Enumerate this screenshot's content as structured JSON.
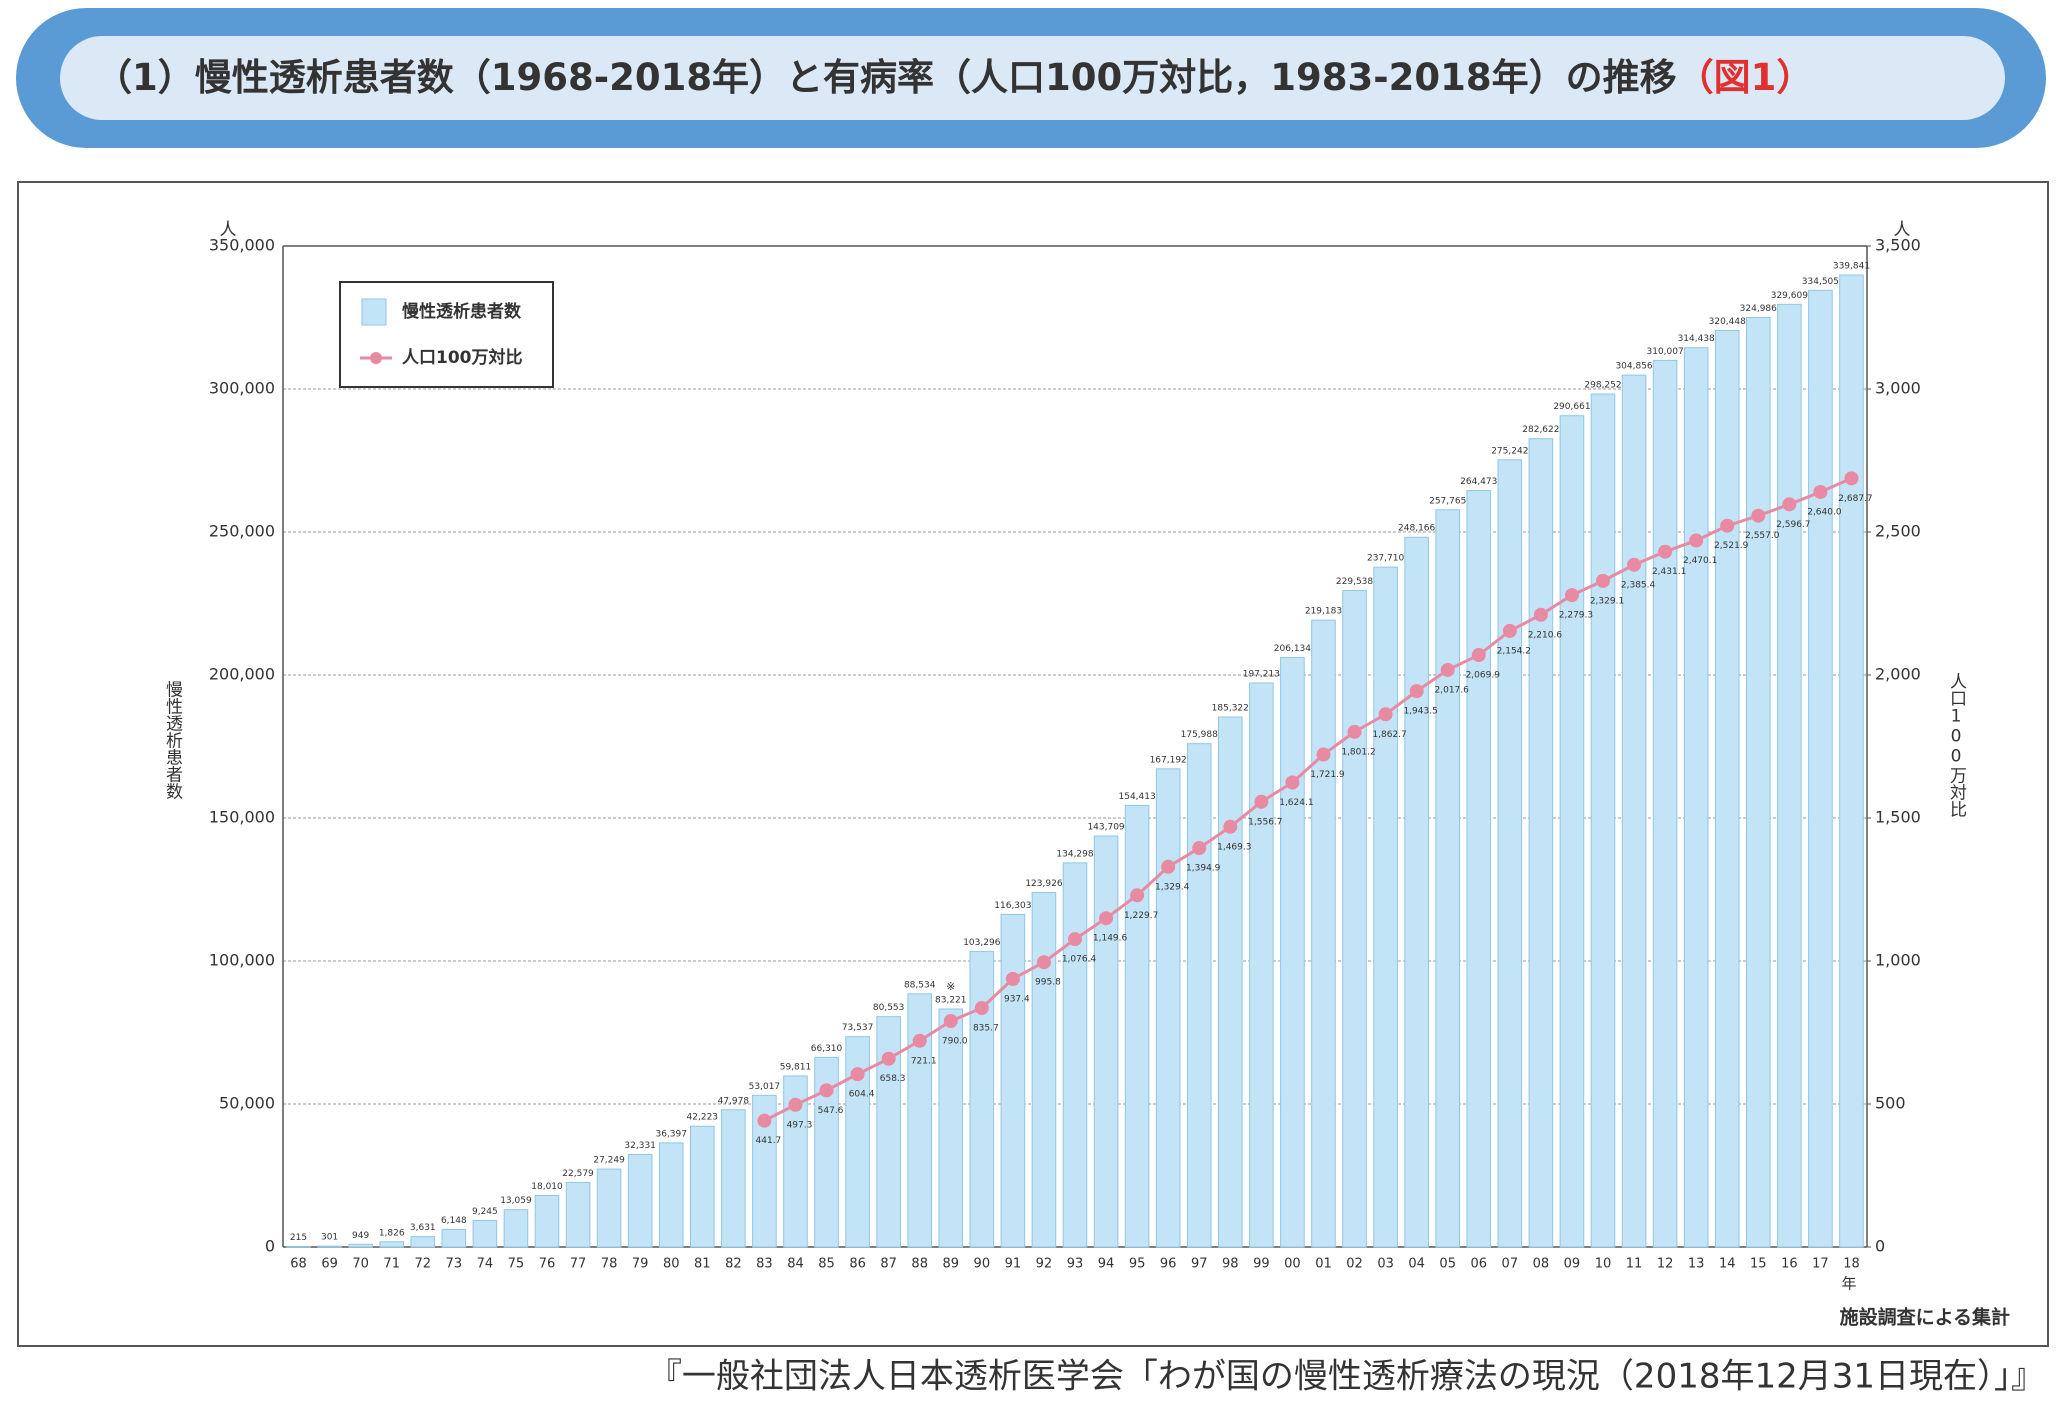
{
  "chart_data": {
    "type": "bar_line",
    "title": "（1）慢性透析患者数（1968-2018年）と有病率（人口100万対比，1983-2018年）の推移",
    "title_ref": "（図1）",
    "y_label": "慢性透析患者数",
    "y2_label": "人口100万対比",
    "y_unit": "人",
    "y2_unit": "人",
    "x_unit": "年",
    "note": "施設調査による集計",
    "annotation": "※",
    "source": "『一般社団法人日本透析医学会「わが国の慢性透析療法の現況（2018年12月31日現在）」』",
    "categories": [
      "68",
      "69",
      "70",
      "71",
      "72",
      "73",
      "74",
      "75",
      "76",
      "77",
      "78",
      "79",
      "80",
      "81",
      "82",
      "83",
      "84",
      "85",
      "86",
      "87",
      "88",
      "89",
      "90",
      "91",
      "92",
      "93",
      "94",
      "95",
      "96",
      "97",
      "98",
      "99",
      "00",
      "01",
      "02",
      "03",
      "04",
      "05",
      "06",
      "07",
      "08",
      "09",
      "10",
      "11",
      "12",
      "13",
      "14",
      "15",
      "16",
      "17",
      "18"
    ],
    "series": [
      {
        "name": "慢性透析患者数",
        "color": "#c3e4f6",
        "values": [
          215,
          301,
          949,
          1826,
          3631,
          6148,
          9245,
          13059,
          18010,
          22579,
          27249,
          32331,
          36397,
          42223,
          47978,
          53017,
          59811,
          66310,
          73537,
          80553,
          88534,
          83221,
          103296,
          116303,
          123926,
          134298,
          143709,
          154413,
          167192,
          175988,
          185322,
          197213,
          206134,
          219183,
          229538,
          237710,
          248166,
          257765,
          264473,
          275242,
          282622,
          290661,
          298252,
          304856,
          310007,
          314438,
          320448,
          324986,
          329609,
          334505,
          339841
        ],
        "value_labels": [
          "215",
          "301",
          "949",
          "1,826",
          "3,631",
          "6,148",
          "9,245",
          "13,059",
          "18,010",
          "22,579",
          "27,249",
          "32,331",
          "36,397",
          "42,223",
          "47,978",
          "53,017",
          "59,811",
          "66,310",
          "73,537",
          "80,553",
          "88,534",
          "83,221",
          "103,296",
          "116,303",
          "123,926",
          "134,298",
          "143,709",
          "154,413",
          "167,192",
          "175,988",
          "185,322",
          "197,213",
          "206,134",
          "219,183",
          "229,538",
          "237,710",
          "248,166",
          "257,765",
          "264,473",
          "275,242",
          "282,622",
          "290,661",
          "298,252",
          "304,856",
          "310,007",
          "314,438",
          "320,448",
          "324,986",
          "329,609",
          "334,505",
          "339,841"
        ]
      },
      {
        "name": "人口100万対比",
        "color": "#e88aa2",
        "axis": "y2",
        "values": [
          null,
          null,
          null,
          null,
          null,
          null,
          null,
          null,
          null,
          null,
          null,
          null,
          null,
          null,
          null,
          441.7,
          497.3,
          547.6,
          604.4,
          658.3,
          721.1,
          790.0,
          835.7,
          937.4,
          995.8,
          1076.4,
          1149.6,
          1229.7,
          1329.4,
          1394.9,
          1469.3,
          1556.7,
          1624.1,
          1721.9,
          1801.2,
          1862.7,
          1943.5,
          2017.6,
          2069.9,
          2154.2,
          2210.6,
          2279.3,
          2329.1,
          2385.4,
          2431.1,
          2470.1,
          2521.9,
          2557.0,
          2596.7,
          2640.0,
          2687.7
        ],
        "value_labels": [
          null,
          null,
          null,
          null,
          null,
          null,
          null,
          null,
          null,
          null,
          null,
          null,
          null,
          null,
          null,
          "441.7",
          "497.3",
          "547.6",
          "604.4",
          "658.3",
          "721.1",
          "790.0",
          "835.7",
          "937.4",
          "995.8",
          "1,076.4",
          "1,149.6",
          "1,229.7",
          "1,329.4",
          "1,394.9",
          "1,469.3",
          "1,556.7",
          "1,624.1",
          "1,721.9",
          "1,801.2",
          "1,862.7",
          "1,943.5",
          "2,017.6",
          "2,069.9",
          "2,154.2",
          "2,210.6",
          "2,279.3",
          "2,329.1",
          "2,385.4",
          "2,431.1",
          "2,470.1",
          "2,521.9",
          "2,557.0",
          "2,596.7",
          "2,640.0",
          "2,687.7"
        ]
      }
    ],
    "ylim": [
      0,
      350000
    ],
    "yticks": [
      0,
      {
        "value": 50000,
        "label": "50,000"
      },
      {
        "value": 100000,
        "label": "100,000"
      },
      {
        "value": 150000,
        "label": "150,000"
      },
      {
        "value": 200000,
        "label": "200,000"
      },
      {
        "value": 250000,
        "label": "250,000"
      },
      {
        "value": 300000,
        "label": "300,000"
      },
      {
        "value": 350000,
        "label": "350,000"
      }
    ],
    "y2lim": [
      0,
      3500
    ],
    "y2ticks": [
      0,
      500,
      {
        "value": 1000,
        "label": "1,000"
      },
      {
        "value": 1500,
        "label": "1,500"
      },
      {
        "value": 2000,
        "label": "2,000"
      },
      {
        "value": 2500,
        "label": "2,500"
      },
      {
        "value": 3000,
        "label": "3,000"
      },
      {
        "value": 3500,
        "label": "3,500"
      }
    ],
    "grid": true,
    "legend": "upper left"
  }
}
